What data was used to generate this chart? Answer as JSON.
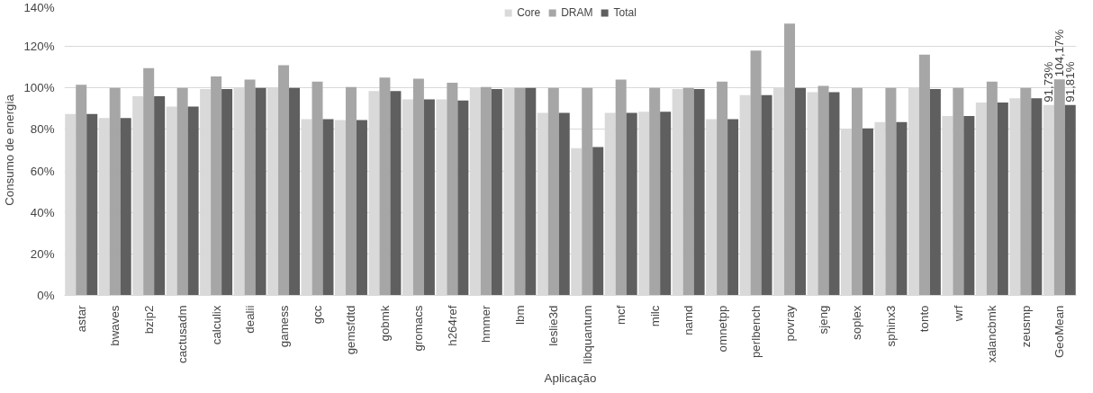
{
  "chart_data": {
    "type": "bar",
    "xlabel": "Aplicação",
    "ylabel": "Consumo de energia",
    "categories": [
      "astar",
      "bwaves",
      "bzip2",
      "cactusadm",
      "calculix",
      "dealii",
      "gamess",
      "gcc",
      "gemsfdtd",
      "gobmk",
      "gromacs",
      "h264ref",
      "hmmer",
      "lbm",
      "leslie3d",
      "libquantum",
      "mcf",
      "milc",
      "namd",
      "omnetpp",
      "perlbench",
      "povray",
      "sjeng",
      "soplex",
      "sphinx3",
      "tonto",
      "wrf",
      "xalancbmk",
      "zeusmp",
      "GeoMean"
    ],
    "series": [
      {
        "name": "Core",
        "color": "#d9d9d9",
        "values": [
          87.5,
          85.5,
          96,
          91,
          99.5,
          100,
          100,
          85,
          84.5,
          98.5,
          94.5,
          94.5,
          100,
          100,
          88,
          71,
          88,
          88.5,
          99.5,
          85,
          96.5,
          100,
          98,
          80,
          83.5,
          100,
          86.5,
          93,
          95,
          91.73
        ],
        "value_labels": [
          null,
          null,
          null,
          null,
          null,
          null,
          null,
          null,
          null,
          null,
          null,
          null,
          null,
          null,
          null,
          null,
          null,
          null,
          null,
          null,
          null,
          null,
          null,
          null,
          null,
          null,
          null,
          null,
          null,
          "91,73%"
        ]
      },
      {
        "name": "DRAM",
        "color": "#a6a6a6",
        "values": [
          101.5,
          100,
          109.5,
          100,
          105.5,
          104,
          111,
          103,
          100.5,
          105,
          104.5,
          102.5,
          100.5,
          100,
          100,
          100,
          104,
          100,
          100,
          103,
          118,
          131,
          101,
          100,
          100,
          116,
          100,
          103,
          100,
          104.17
        ],
        "value_labels": [
          null,
          null,
          null,
          null,
          null,
          null,
          null,
          null,
          null,
          null,
          null,
          null,
          null,
          null,
          null,
          null,
          null,
          null,
          null,
          null,
          null,
          null,
          null,
          null,
          null,
          null,
          null,
          null,
          null,
          "104,17%"
        ]
      },
      {
        "name": "Total",
        "color": "#5f5f5f",
        "values": [
          87.5,
          85.5,
          96,
          91,
          99.5,
          100,
          100,
          85,
          84.5,
          98.5,
          94.5,
          94,
          99.5,
          100,
          88,
          71.5,
          88,
          88.5,
          99.5,
          85,
          96.5,
          100,
          98,
          80.5,
          83.5,
          99.5,
          86.5,
          93,
          95,
          91.81
        ],
        "value_labels": [
          null,
          null,
          null,
          null,
          null,
          null,
          null,
          null,
          null,
          null,
          null,
          null,
          null,
          null,
          null,
          null,
          null,
          null,
          null,
          null,
          null,
          null,
          null,
          null,
          null,
          null,
          null,
          null,
          null,
          "91,81%"
        ]
      }
    ],
    "ylim": [
      0,
      140
    ],
    "yticks": [
      {
        "value": 0,
        "label": "0%"
      },
      {
        "value": 20,
        "label": "20%"
      },
      {
        "value": 40,
        "label": "40%"
      },
      {
        "value": 60,
        "label": "60%"
      },
      {
        "value": 80,
        "label": "80%"
      },
      {
        "value": 100,
        "label": "100%"
      },
      {
        "value": 120,
        "label": "120%"
      },
      {
        "value": 140,
        "label": "140%"
      }
    ],
    "grid": "y",
    "legend": "top"
  }
}
